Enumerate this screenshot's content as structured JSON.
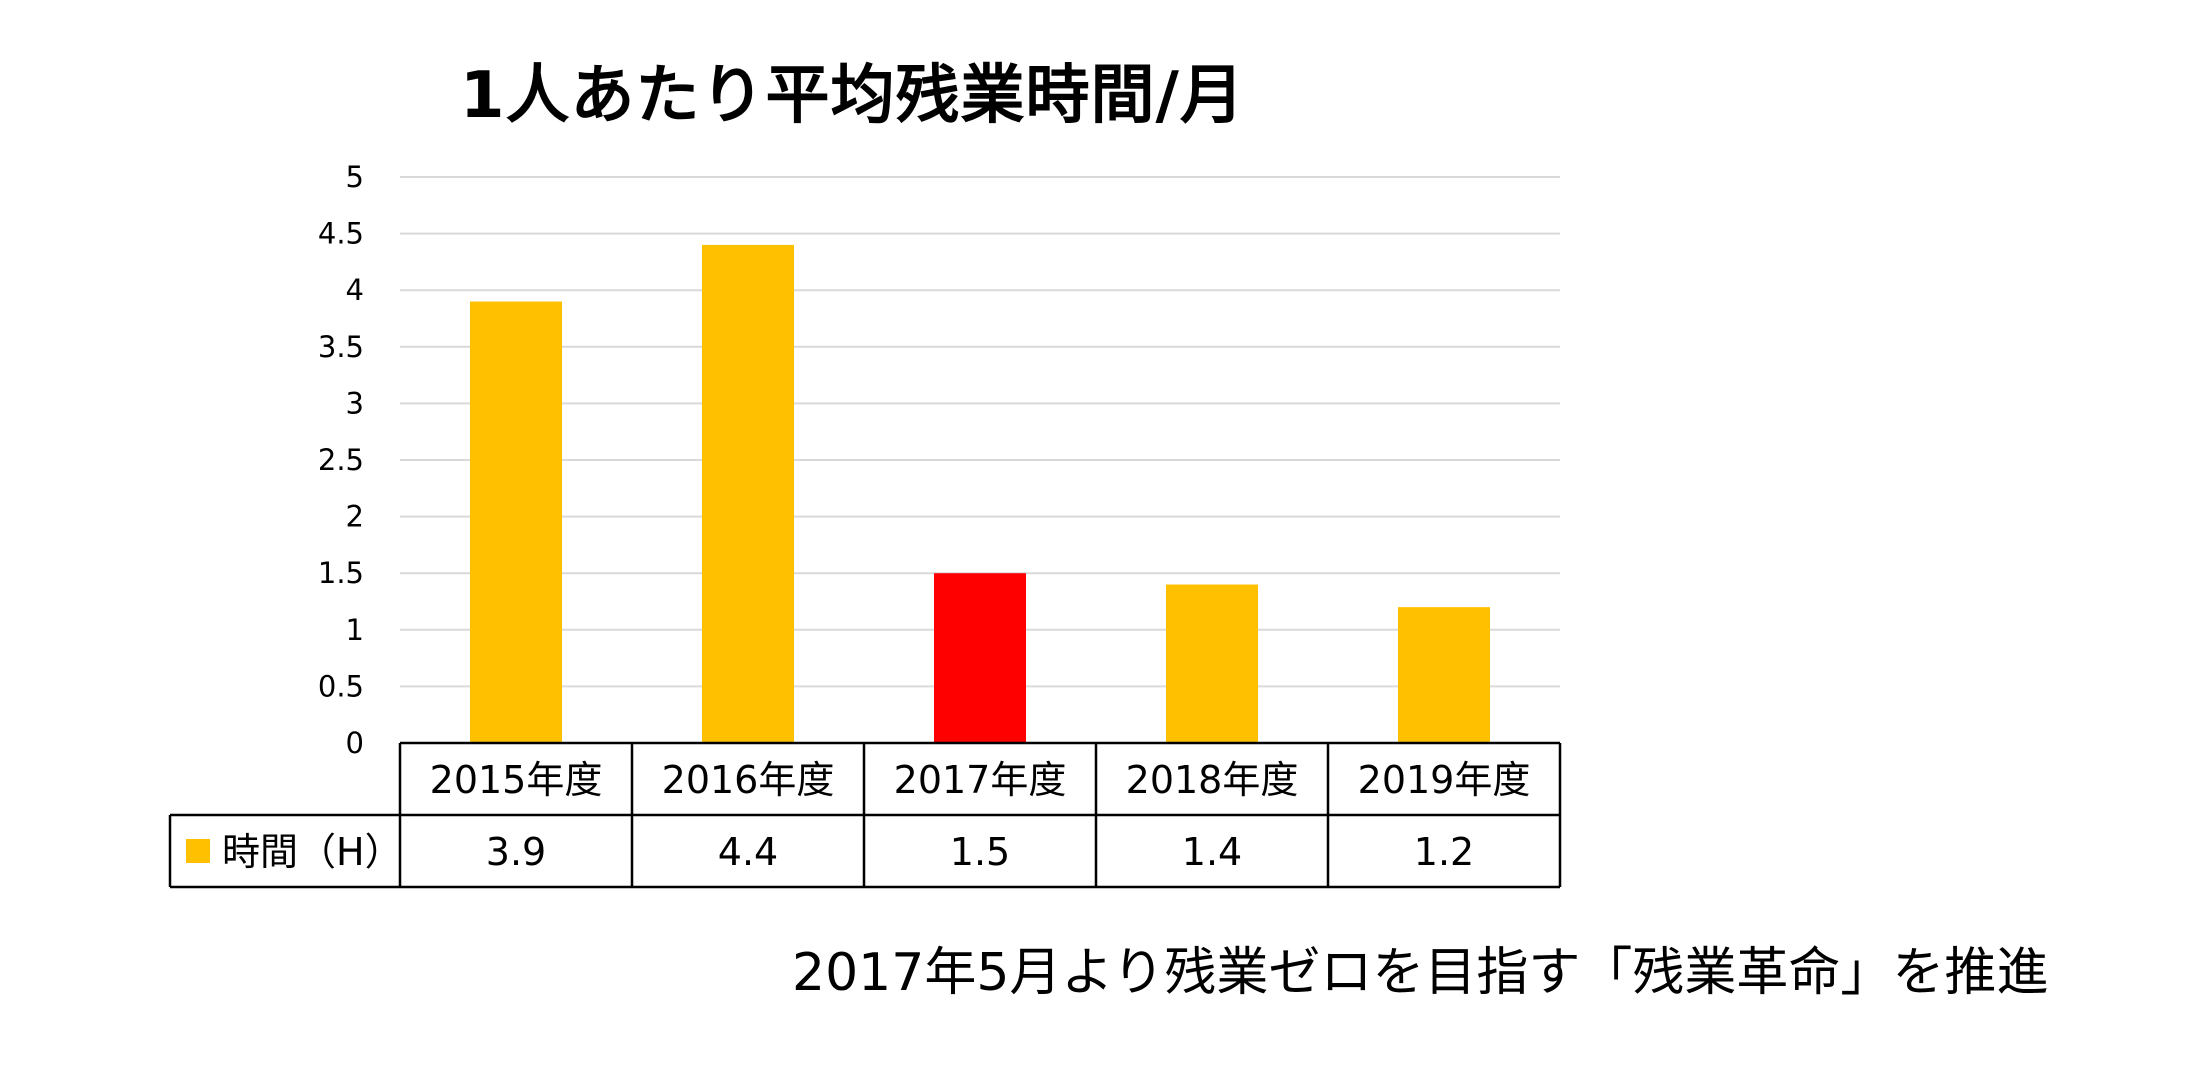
{
  "title": "1人あたり平均残業時間/月",
  "footnote": "2017年5月より残業ゼロを目指す「残業革命」を推進",
  "chart_data": {
    "type": "bar",
    "title": "1人あたり平均残業時間/月",
    "categories": [
      "2015年度",
      "2016年度",
      "2017年度",
      "2018年度",
      "2019年度"
    ],
    "series": [
      {
        "name": "時間（H）",
        "values": [
          3.9,
          4.4,
          1.5,
          1.4,
          1.2
        ],
        "value_labels": [
          "3.9",
          "4.4",
          "1.5",
          "1.4",
          "1.2"
        ],
        "color": "#FFC000",
        "highlight_colors": [
          "#FFC000",
          "#FFC000",
          "#FF0000",
          "#FFC000",
          "#FFC000"
        ]
      }
    ],
    "ylim": [
      0,
      5
    ],
    "yticks": [
      "0",
      "0.5",
      "1",
      "1.5",
      "2",
      "2.5",
      "3",
      "3.5",
      "4",
      "4.5",
      "5"
    ],
    "grid": true,
    "data_table": true,
    "legend_in_table": true,
    "colors": {
      "default_bar": "#FFC000",
      "highlight_bar": "#FF0000",
      "gridline": "#D9D9D9"
    }
  }
}
